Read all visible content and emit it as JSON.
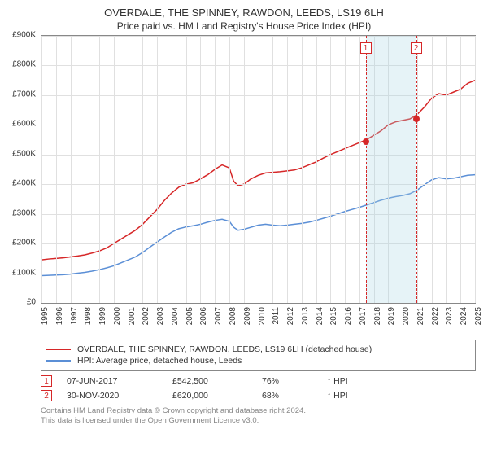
{
  "title": "OVERDALE, THE SPINNEY, RAWDON, LEEDS, LS19 6LH",
  "subtitle": "Price paid vs. HM Land Registry's House Price Index (HPI)",
  "chart": {
    "type": "line",
    "background_color": "#ffffff",
    "grid_color": "#e0e0e0",
    "border_color": "#888888",
    "xlim": [
      1995,
      2025
    ],
    "ylim": [
      0,
      900
    ],
    "ylabel_prefix": "£",
    "ylabel_suffix": "K",
    "ytick_step": 100,
    "yticks": [
      "£0",
      "£100K",
      "£200K",
      "£300K",
      "£400K",
      "£500K",
      "£600K",
      "£700K",
      "£800K",
      "£900K"
    ],
    "xticks": [
      1995,
      1996,
      1997,
      1998,
      1999,
      2000,
      2001,
      2002,
      2003,
      2004,
      2005,
      2006,
      2007,
      2008,
      2009,
      2010,
      2011,
      2012,
      2013,
      2014,
      2015,
      2016,
      2017,
      2018,
      2019,
      2020,
      2021,
      2022,
      2023,
      2024,
      2025
    ],
    "series": [
      {
        "name": "price_paid",
        "label": "OVERDALE, THE SPINNEY, RAWDON, LEEDS, LS19 6LH (detached house)",
        "color": "#d62728",
        "line_width": 1.5,
        "data": [
          [
            1995,
            145
          ],
          [
            1995.5,
            148
          ],
          [
            1996,
            150
          ],
          [
            1996.5,
            152
          ],
          [
            1997,
            155
          ],
          [
            1997.5,
            158
          ],
          [
            1998,
            162
          ],
          [
            1998.5,
            168
          ],
          [
            1999,
            175
          ],
          [
            1999.5,
            185
          ],
          [
            2000,
            200
          ],
          [
            2000.5,
            215
          ],
          [
            2001,
            230
          ],
          [
            2001.5,
            245
          ],
          [
            2002,
            265
          ],
          [
            2002.5,
            290
          ],
          [
            2003,
            315
          ],
          [
            2003.5,
            345
          ],
          [
            2004,
            370
          ],
          [
            2004.5,
            390
          ],
          [
            2005,
            400
          ],
          [
            2005.5,
            405
          ],
          [
            2006,
            418
          ],
          [
            2006.5,
            432
          ],
          [
            2007,
            450
          ],
          [
            2007.5,
            465
          ],
          [
            2008,
            455
          ],
          [
            2008.3,
            410
          ],
          [
            2008.6,
            395
          ],
          [
            2009,
            400
          ],
          [
            2009.5,
            418
          ],
          [
            2010,
            430
          ],
          [
            2010.5,
            438
          ],
          [
            2011,
            440
          ],
          [
            2011.5,
            442
          ],
          [
            2012,
            445
          ],
          [
            2012.5,
            448
          ],
          [
            2013,
            455
          ],
          [
            2013.5,
            465
          ],
          [
            2014,
            475
          ],
          [
            2014.5,
            488
          ],
          [
            2015,
            500
          ],
          [
            2015.5,
            510
          ],
          [
            2016,
            520
          ],
          [
            2016.5,
            530
          ],
          [
            2017,
            540
          ],
          [
            2017.5,
            550
          ],
          [
            2018,
            565
          ],
          [
            2018.5,
            580
          ],
          [
            2019,
            600
          ],
          [
            2019.5,
            610
          ],
          [
            2020,
            615
          ],
          [
            2020.5,
            620
          ],
          [
            2021,
            635
          ],
          [
            2021.5,
            660
          ],
          [
            2022,
            690
          ],
          [
            2022.5,
            705
          ],
          [
            2023,
            700
          ],
          [
            2023.5,
            710
          ],
          [
            2024,
            720
          ],
          [
            2024.5,
            740
          ],
          [
            2025,
            750
          ]
        ]
      },
      {
        "name": "hpi",
        "label": "HPI: Average price, detached house, Leeds",
        "color": "#5b8fd6",
        "line_width": 1.5,
        "data": [
          [
            1995,
            92
          ],
          [
            1995.5,
            93
          ],
          [
            1996,
            94
          ],
          [
            1996.5,
            95
          ],
          [
            1997,
            97
          ],
          [
            1997.5,
            100
          ],
          [
            1998,
            103
          ],
          [
            1998.5,
            107
          ],
          [
            1999,
            112
          ],
          [
            1999.5,
            118
          ],
          [
            2000,
            125
          ],
          [
            2000.5,
            135
          ],
          [
            2001,
            145
          ],
          [
            2001.5,
            155
          ],
          [
            2002,
            170
          ],
          [
            2002.5,
            188
          ],
          [
            2003,
            205
          ],
          [
            2003.5,
            222
          ],
          [
            2004,
            238
          ],
          [
            2004.5,
            250
          ],
          [
            2005,
            256
          ],
          [
            2005.5,
            260
          ],
          [
            2006,
            265
          ],
          [
            2006.5,
            272
          ],
          [
            2007,
            278
          ],
          [
            2007.5,
            282
          ],
          [
            2008,
            275
          ],
          [
            2008.3,
            255
          ],
          [
            2008.6,
            245
          ],
          [
            2009,
            248
          ],
          [
            2009.5,
            255
          ],
          [
            2010,
            262
          ],
          [
            2010.5,
            265
          ],
          [
            2011,
            262
          ],
          [
            2011.5,
            260
          ],
          [
            2012,
            262
          ],
          [
            2012.5,
            265
          ],
          [
            2013,
            268
          ],
          [
            2013.5,
            272
          ],
          [
            2014,
            278
          ],
          [
            2014.5,
            285
          ],
          [
            2015,
            292
          ],
          [
            2015.5,
            300
          ],
          [
            2016,
            308
          ],
          [
            2016.5,
            315
          ],
          [
            2017,
            322
          ],
          [
            2017.5,
            330
          ],
          [
            2018,
            338
          ],
          [
            2018.5,
            346
          ],
          [
            2019,
            353
          ],
          [
            2019.5,
            358
          ],
          [
            2020,
            362
          ],
          [
            2020.5,
            368
          ],
          [
            2021,
            380
          ],
          [
            2021.5,
            398
          ],
          [
            2022,
            415
          ],
          [
            2022.5,
            422
          ],
          [
            2023,
            418
          ],
          [
            2023.5,
            420
          ],
          [
            2024,
            425
          ],
          [
            2024.5,
            430
          ],
          [
            2025,
            432
          ]
        ]
      }
    ],
    "markers": [
      {
        "id": "1",
        "x": 2017.43,
        "date": "07-JUN-2017",
        "price": "£542,500",
        "pct": "76%",
        "pct_label": "↑ HPI",
        "color": "#d62728",
        "point_y": 542
      },
      {
        "id": "2",
        "x": 2020.92,
        "date": "30-NOV-2020",
        "price": "£620,000",
        "pct": "68%",
        "pct_label": "↑ HPI",
        "color": "#d62728",
        "point_y": 620
      }
    ],
    "marker_band": {
      "from_idx": 0,
      "to_idx": 1,
      "fill": "rgba(173,216,230,0.3)"
    }
  },
  "footer": {
    "line1": "Contains HM Land Registry data © Crown copyright and database right 2024.",
    "line2": "This data is licensed under the Open Government Licence v3.0."
  }
}
